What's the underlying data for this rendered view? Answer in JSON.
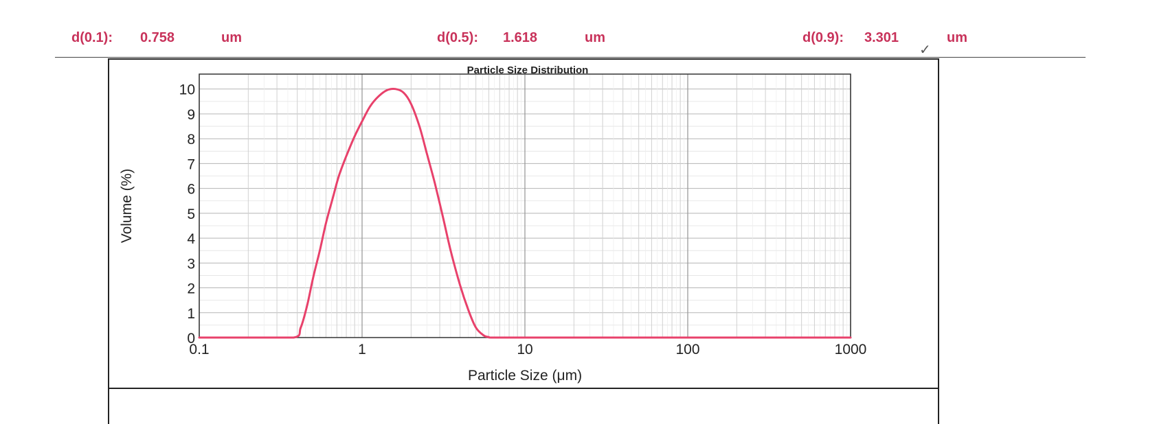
{
  "header": {
    "stats": [
      {
        "label": "d(0.1):",
        "value": "0.758",
        "unit": "um"
      },
      {
        "label": "d(0.5):",
        "value": "1.618",
        "unit": "um"
      },
      {
        "label": "d(0.9):",
        "value": "3.301",
        "unit": "um"
      }
    ],
    "stats_color": "#c8325a"
  },
  "chart_data": {
    "type": "area",
    "title": "Particle Size Distribution",
    "xlabel": "Particle Size (μm)",
    "ylabel": "Volume (%)",
    "x_scale": "log",
    "xlim": [
      0.1,
      1000
    ],
    "ylim": [
      0,
      10.6
    ],
    "x_ticks": [
      0.1,
      1,
      10,
      100,
      1000
    ],
    "x_tick_labels": [
      "0.1",
      "1",
      "10",
      "100",
      "1000"
    ],
    "y_ticks": [
      0,
      1,
      2,
      3,
      4,
      5,
      6,
      7,
      8,
      9,
      10
    ],
    "y_tick_labels": [
      "0",
      "1",
      "2",
      "3",
      "4",
      "5",
      "6",
      "7",
      "8",
      "9",
      "10"
    ],
    "grid": true,
    "line_color": "#e8416b",
    "series": [
      {
        "x": [
          0.1,
          0.2,
          0.38,
          0.42,
          0.46,
          0.5,
          0.55,
          0.6,
          0.66,
          0.72,
          0.8,
          0.9,
          1.0,
          1.12,
          1.26,
          1.42,
          1.6,
          1.8,
          2.0,
          2.25,
          2.5,
          2.8,
          3.15,
          3.5,
          4.0,
          4.5,
          5.0,
          5.6,
          6.0,
          6.3,
          10,
          100,
          1000
        ],
        "y": [
          0,
          0,
          0,
          0.4,
          1.3,
          2.4,
          3.5,
          4.6,
          5.6,
          6.5,
          7.3,
          8.1,
          8.7,
          9.3,
          9.7,
          9.95,
          10.0,
          9.85,
          9.4,
          8.5,
          7.4,
          6.2,
          4.8,
          3.5,
          2.1,
          1.1,
          0.4,
          0.08,
          0.02,
          0,
          0,
          0,
          0
        ]
      }
    ]
  }
}
